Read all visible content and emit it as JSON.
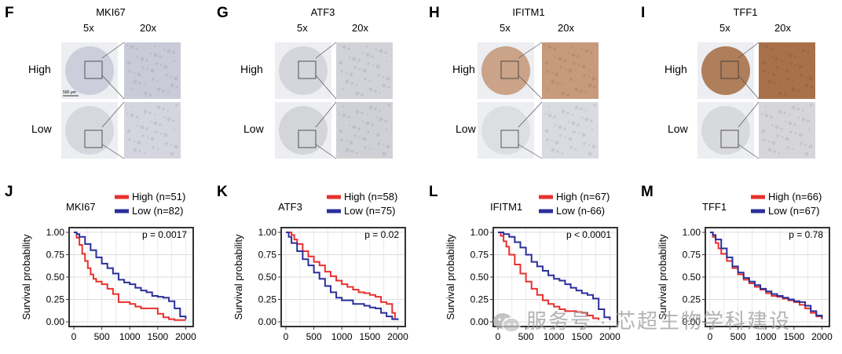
{
  "ihc": {
    "magnification_low": "5x",
    "magnification_high": "20x",
    "row_high": "High",
    "row_low": "Low",
    "scale_bar": "500 μm",
    "panels": [
      {
        "letter": "F",
        "gene": "MKI67",
        "high_color": "#c9cbd8",
        "low_color": "#d4d5de"
      },
      {
        "letter": "G",
        "gene": "ATF3",
        "high_color": "#d2d3d9",
        "low_color": "#d0d1d6"
      },
      {
        "letter": "H",
        "gene": "IFITM1",
        "high_color": "#c79a7c",
        "low_color": "#dadbe0"
      },
      {
        "letter": "I",
        "gene": "TFF1",
        "high_color": "#a9714a",
        "low_color": "#d6d6da"
      }
    ]
  },
  "chart_data": [
    {
      "letter": "J",
      "type": "line",
      "title": "MKI67",
      "ylabel": "Survival probability",
      "xlabel": "",
      "xlim": [
        0,
        2050
      ],
      "ylim": [
        0,
        1.0
      ],
      "xticks": [
        "0",
        "500",
        "1000",
        "1500",
        "2000"
      ],
      "yticks": [
        "0.00",
        "0.25",
        "0.50",
        "0.75",
        "1.00"
      ],
      "pvalue": "p = 0.0017",
      "series": [
        {
          "name": "High (n=51)",
          "color": "#e8312f",
          "x": [
            0,
            50,
            100,
            150,
            200,
            250,
            300,
            350,
            400,
            500,
            600,
            700,
            800,
            1000,
            1100,
            1200,
            1300,
            1500,
            1600,
            1700,
            1800,
            1900,
            2000
          ],
          "y": [
            1.0,
            0.94,
            0.86,
            0.76,
            0.68,
            0.6,
            0.53,
            0.48,
            0.45,
            0.42,
            0.37,
            0.31,
            0.22,
            0.2,
            0.17,
            0.15,
            0.15,
            0.09,
            0.05,
            0.03,
            0.02,
            0.02,
            0.02
          ]
        },
        {
          "name": "Low (n=82)",
          "color": "#2b2f9a",
          "x": [
            0,
            50,
            100,
            200,
            300,
            400,
            500,
            600,
            700,
            800,
            900,
            1000,
            1100,
            1200,
            1300,
            1400,
            1500,
            1600,
            1700,
            1800,
            1900,
            2000
          ],
          "y": [
            1.0,
            0.98,
            0.95,
            0.87,
            0.8,
            0.72,
            0.65,
            0.6,
            0.54,
            0.47,
            0.44,
            0.42,
            0.38,
            0.35,
            0.33,
            0.29,
            0.28,
            0.27,
            0.23,
            0.15,
            0.06,
            0.03
          ]
        }
      ]
    },
    {
      "letter": "K",
      "type": "line",
      "title": "ATF3",
      "ylabel": "Survival probability",
      "xlabel": "",
      "xlim": [
        0,
        2050
      ],
      "ylim": [
        0,
        1.0
      ],
      "xticks": [
        "0",
        "500",
        "1000",
        "1500",
        "2000"
      ],
      "yticks": [
        "0.00",
        "0.25",
        "0.50",
        "0.75",
        "1.00"
      ],
      "pvalue": "p = 0.02",
      "series": [
        {
          "name": "High (n=58)",
          "color": "#e8312f",
          "x": [
            0,
            100,
            150,
            200,
            300,
            400,
            500,
            600,
            700,
            800,
            900,
            1000,
            1100,
            1200,
            1300,
            1400,
            1500,
            1600,
            1700,
            1800,
            1900,
            1950
          ],
          "y": [
            1.0,
            0.97,
            0.92,
            0.87,
            0.79,
            0.73,
            0.67,
            0.63,
            0.56,
            0.51,
            0.46,
            0.42,
            0.39,
            0.36,
            0.33,
            0.32,
            0.3,
            0.28,
            0.22,
            0.2,
            0.1,
            0.04
          ]
        },
        {
          "name": "Low (n=75)",
          "color": "#2b2f9a",
          "x": [
            0,
            50,
            100,
            200,
            300,
            400,
            500,
            600,
            700,
            800,
            900,
            1000,
            1200,
            1400,
            1500,
            1600,
            1700,
            1800,
            1900,
            2000
          ],
          "y": [
            1.0,
            0.95,
            0.88,
            0.79,
            0.7,
            0.63,
            0.55,
            0.48,
            0.4,
            0.33,
            0.27,
            0.24,
            0.2,
            0.18,
            0.16,
            0.15,
            0.1,
            0.06,
            0.03,
            0.02
          ]
        }
      ]
    },
    {
      "letter": "L",
      "type": "line",
      "title": "IFITM1",
      "ylabel": "Survival probability",
      "xlabel": "",
      "xlim": [
        0,
        2050
      ],
      "ylim": [
        0,
        1.0
      ],
      "xticks": [
        "0",
        "500",
        "1000",
        "1500",
        "2000"
      ],
      "yticks": [
        "0.00",
        "0.25",
        "0.50",
        "0.75",
        "1.00"
      ],
      "pvalue": "p < 0.0001",
      "series": [
        {
          "name": "High (n=67)",
          "color": "#e8312f",
          "x": [
            0,
            50,
            100,
            150,
            200,
            300,
            400,
            500,
            600,
            700,
            800,
            900,
            1000,
            1100,
            1200,
            1300,
            1400,
            1500,
            1600,
            1700,
            1800
          ],
          "y": [
            1.0,
            0.96,
            0.9,
            0.84,
            0.75,
            0.64,
            0.54,
            0.45,
            0.37,
            0.3,
            0.24,
            0.2,
            0.17,
            0.14,
            0.12,
            0.12,
            0.11,
            0.1,
            0.07,
            0.04,
            0.02
          ]
        },
        {
          "name": "Low (n-66)",
          "color": "#2b2f9a",
          "x": [
            0,
            100,
            200,
            300,
            400,
            500,
            600,
            700,
            800,
            900,
            1000,
            1100,
            1200,
            1300,
            1400,
            1500,
            1600,
            1700,
            1800,
            1900,
            2000
          ],
          "y": [
            1.0,
            0.98,
            0.95,
            0.89,
            0.83,
            0.75,
            0.67,
            0.62,
            0.57,
            0.52,
            0.48,
            0.46,
            0.42,
            0.38,
            0.35,
            0.32,
            0.3,
            0.26,
            0.14,
            0.05,
            0.02
          ]
        }
      ]
    },
    {
      "letter": "M",
      "type": "line",
      "title": "TFF1",
      "ylabel": "Survival probability",
      "xlabel": "",
      "xlim": [
        0,
        2050
      ],
      "ylim": [
        0,
        1.0
      ],
      "xticks": [
        "0",
        "500",
        "1000",
        "1500",
        "2000"
      ],
      "yticks": [
        "0.00",
        "0.25",
        "0.50",
        "0.75",
        "1.00"
      ],
      "pvalue": "p = 0.78",
      "series": [
        {
          "name": "High (n=66)",
          "color": "#e8312f",
          "x": [
            0,
            50,
            100,
            150,
            200,
            300,
            400,
            500,
            600,
            700,
            800,
            900,
            1000,
            1100,
            1200,
            1300,
            1400,
            1500,
            1600,
            1700,
            1800,
            1900,
            2000
          ],
          "y": [
            1.0,
            0.95,
            0.88,
            0.82,
            0.76,
            0.68,
            0.6,
            0.53,
            0.47,
            0.43,
            0.39,
            0.36,
            0.32,
            0.29,
            0.28,
            0.26,
            0.24,
            0.22,
            0.19,
            0.15,
            0.1,
            0.06,
            0.03
          ]
        },
        {
          "name": "Low (n=67)",
          "color": "#2b2f9a",
          "x": [
            0,
            50,
            100,
            200,
            300,
            400,
            500,
            600,
            700,
            800,
            900,
            1000,
            1100,
            1200,
            1300,
            1400,
            1500,
            1600,
            1700,
            1800,
            1900,
            2000
          ],
          "y": [
            1.0,
            0.97,
            0.92,
            0.82,
            0.72,
            0.62,
            0.55,
            0.49,
            0.45,
            0.41,
            0.37,
            0.34,
            0.31,
            0.29,
            0.27,
            0.25,
            0.23,
            0.22,
            0.18,
            0.12,
            0.07,
            0.04
          ]
        }
      ]
    }
  ],
  "watermark": "服务号 · 芯超生物学科建设"
}
